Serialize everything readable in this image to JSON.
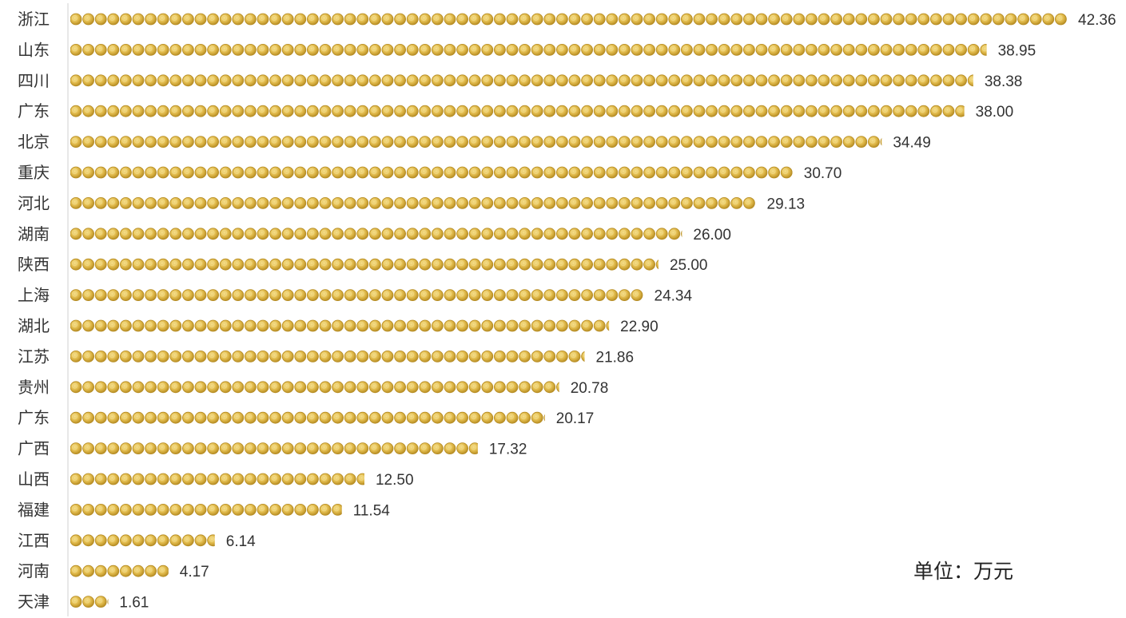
{
  "chart_data": {
    "type": "bar",
    "orientation": "horizontal",
    "categories": [
      "浙江",
      "山东",
      "四川",
      "广东",
      "北京",
      "重庆",
      "河北",
      "湖南",
      "陕西",
      "上海",
      "湖北",
      "江苏",
      "贵州",
      "广东",
      "广西",
      "山西",
      "福建",
      "江西",
      "河南",
      "天津"
    ],
    "values": [
      42.36,
      38.95,
      38.38,
      38.0,
      34.49,
      30.7,
      29.13,
      26.0,
      25.0,
      24.34,
      22.9,
      21.86,
      20.78,
      20.17,
      17.32,
      12.5,
      11.54,
      6.14,
      4.17,
      1.61
    ],
    "value_labels": [
      "42.36",
      "38.95",
      "38.38",
      "38.00",
      "34.49",
      "30.70",
      "29.13",
      "26.00",
      "25.00",
      "24.34",
      "22.90",
      "21.86",
      "20.78",
      "20.17",
      "17.32",
      "12.50",
      "11.54",
      "6.14",
      "4.17",
      "1.61"
    ],
    "unit_note": "单位：万元",
    "title": "",
    "xlabel": "",
    "ylabel": "",
    "xlim": [
      0,
      43
    ],
    "grid": false,
    "legend": "none",
    "bar_style": "stacked-coin-pictograph",
    "colors": {
      "coin": "#e3bf52",
      "coin_highlight": "#f3db86",
      "coin_shadow": "#b58b22",
      "axis": "#d0d0d0",
      "text": "#333333"
    }
  }
}
